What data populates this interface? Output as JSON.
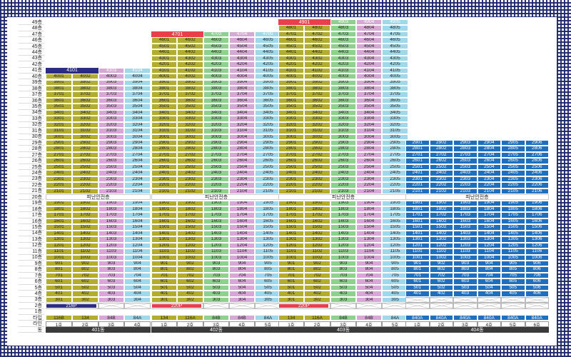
{
  "floor_labels": [
    "49층",
    "48층",
    "47층",
    "46층",
    "45층",
    "44층",
    "43층",
    "42층",
    "41층",
    "40층",
    "39층",
    "38층",
    "37층",
    "36층",
    "35층",
    "34층",
    "33층",
    "32층",
    "31층",
    "30층",
    "29층",
    "28층",
    "27층",
    "26층",
    "25층",
    "24층",
    "23층",
    "22층",
    "21층",
    "20층",
    "19층",
    "18층",
    "17층",
    "16층",
    "15층",
    "14층",
    "13층",
    "12층",
    "11층",
    "10층",
    "9층",
    "8층",
    "7층",
    "6층",
    "5층",
    "4층",
    "3층",
    "2층",
    "1층"
  ],
  "side_labels": {
    "type": "타입",
    "line": "라인",
    "building": "동"
  },
  "refuge_label": "피난안전층",
  "colors": {
    "olive": "#b2ad2e",
    "green": "#8ed08e",
    "pink": "#d7a8d5",
    "cyan": "#9fd8ea",
    "blue": "#1f6fbf",
    "navy": "#2b2e80",
    "red": "#e8404a",
    "gray": "#b8b8b8",
    "name_bar": "#3a3a3a"
  },
  "buildings": [
    {
      "name": "401동",
      "lines": [
        "1호",
        "2호",
        "3호",
        "4호"
      ],
      "types": [
        "116B",
        "134",
        "84B",
        "84A"
      ],
      "type_colors": [
        "olive",
        "olive",
        "pink",
        "cyan"
      ],
      "line_colors": [
        "olive",
        "olive",
        "pink",
        "cyan"
      ],
      "top_floor": 41,
      "start_floor": 3,
      "top_merged": {
        "label": "4101",
        "color": "navy",
        "span": 2
      },
      "top_rest_colors": [
        "pink",
        "cyan"
      ],
      "penthouse_label": "216P",
      "penthouse_color": "navy"
    },
    {
      "name": "402동",
      "lines": [
        "1호",
        "2호",
        "3호",
        "4호",
        "5호"
      ],
      "types": [
        "134",
        "116A",
        "84B",
        "84B",
        "84A"
      ],
      "type_colors": [
        "olive",
        "olive",
        "green",
        "pink",
        "cyan"
      ],
      "line_colors": [
        "olive",
        "olive",
        "green",
        "pink",
        "cyan"
      ],
      "top_floor": 47,
      "start_floor": 3,
      "top_merged": {
        "label": "4701",
        "color": "red",
        "span": 2
      },
      "top_rest_colors": [
        "green",
        "pink",
        "cyan"
      ],
      "penthouse_label": "220P",
      "penthouse_color": "red"
    },
    {
      "name": "403동",
      "lines": [
        "1호",
        "2호",
        "3호",
        "4호",
        "5호"
      ],
      "types": [
        "134",
        "116A",
        "84B",
        "84B",
        "84A"
      ],
      "type_colors": [
        "olive",
        "olive",
        "green",
        "pink",
        "cyan"
      ],
      "line_colors": [
        "olive",
        "olive",
        "green",
        "pink",
        "cyan"
      ],
      "top_floor": 49,
      "start_floor": 3,
      "top_merged": {
        "label": "4901",
        "color": "red",
        "span": 2
      },
      "top_rest_colors": [
        "green",
        "pink",
        "cyan"
      ],
      "penthouse_label": "220P",
      "penthouse_color": "red"
    },
    {
      "name": "404동",
      "lines": [
        "1호",
        "2호",
        "3호",
        "4호",
        "5호",
        "6호"
      ],
      "types": [
        "840A",
        "840A",
        "840A",
        "840A",
        "840A",
        "840A"
      ],
      "type_colors": [
        "blue",
        "blue",
        "blue",
        "blue",
        "blue",
        "blue"
      ],
      "line_colors": [
        "blue",
        "blue",
        "blue",
        "blue",
        "blue",
        "blue"
      ],
      "top_floor": 29,
      "start_floor": 4,
      "top_merged": null,
      "top_rest_colors": null,
      "penthouse_label": "",
      "penthouse_color": "blue"
    }
  ]
}
